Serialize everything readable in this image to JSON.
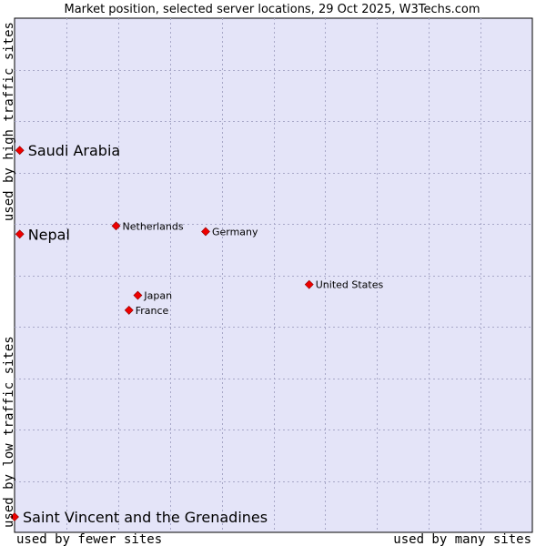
{
  "chart_data": {
    "type": "scatter",
    "title": "Market position, selected server locations, 29 Oct 2025, W3Techs.com",
    "xlabel_left": "used by fewer sites",
    "xlabel_right": "used by many sites",
    "ylabel_top": "used by high traffic sites",
    "ylabel_bottom": "used by low traffic sites",
    "grid": true,
    "xlim": [
      0,
      100
    ],
    "ylim": [
      0,
      100
    ],
    "background_color": "#e4e4f8",
    "point_color": "#ee0000",
    "points": [
      {
        "label": "Saudi Arabia",
        "x": 1.0,
        "y": 74.3,
        "size": "large"
      },
      {
        "label": "Nepal",
        "x": 1.0,
        "y": 58.0,
        "size": "large"
      },
      {
        "label": "Saint Vincent and the Grenadines",
        "x": 0.0,
        "y": 3.0,
        "size": "large"
      },
      {
        "label": "Netherlands",
        "x": 19.6,
        "y": 59.6,
        "size": "small"
      },
      {
        "label": "Germany",
        "x": 36.9,
        "y": 58.5,
        "size": "small"
      },
      {
        "label": "United States",
        "x": 56.9,
        "y": 48.2,
        "size": "small"
      },
      {
        "label": "Japan",
        "x": 23.8,
        "y": 46.1,
        "size": "small"
      },
      {
        "label": "France",
        "x": 22.1,
        "y": 43.2,
        "size": "small"
      }
    ]
  }
}
